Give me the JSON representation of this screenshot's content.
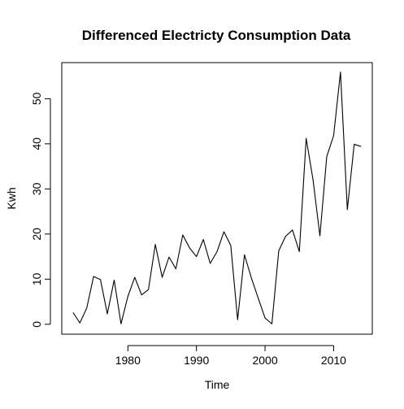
{
  "chart_data": {
    "type": "line",
    "title": "Differenced Electricty Consumption Data",
    "xlabel": "Time",
    "ylabel": "Kwh",
    "xlim": [
      1970.36,
      2015.64
    ],
    "ylim": [
      -2.2,
      58.0
    ],
    "xticks": [
      1980,
      1990,
      2000,
      2010
    ],
    "xtick_labels": [
      "1980",
      "1990",
      "2000",
      "2010"
    ],
    "yticks": [
      0,
      10,
      20,
      30,
      40,
      50
    ],
    "ytick_labels": [
      "0",
      "10",
      "20",
      "30",
      "40",
      "50"
    ],
    "grid": false,
    "legend": "none",
    "line_color": "#000000",
    "series": [
      {
        "x": [
          1972,
          1973,
          1974,
          1975,
          1976,
          1977,
          1978,
          1979,
          1980,
          1981,
          1982,
          1983,
          1984,
          1985,
          1986,
          1987,
          1988,
          1989,
          1990,
          1991,
          1992,
          1993,
          1994,
          1995,
          1996,
          1997,
          1998,
          1999,
          2000,
          2001,
          2002,
          2003,
          2004,
          2005,
          2006,
          2007,
          2008,
          2009,
          2010,
          2011,
          2012,
          2013,
          2014
        ],
        "values": [
          2.6,
          0.3,
          3.6,
          10.6,
          9.9,
          2.3,
          9.8,
          0.1,
          6.2,
          10.4,
          6.5,
          7.7,
          17.7,
          10.4,
          14.9,
          12.3,
          19.8,
          16.9,
          15.0,
          18.8,
          13.5,
          16.1,
          20.5,
          17.5,
          1.0,
          15.4,
          10.3,
          5.8,
          1.4,
          0.1,
          16.3,
          19.5,
          20.9,
          16.1,
          41.2,
          32.0,
          19.6,
          37.2,
          41.8,
          55.9,
          25.4,
          39.9,
          39.4
        ]
      }
    ]
  }
}
